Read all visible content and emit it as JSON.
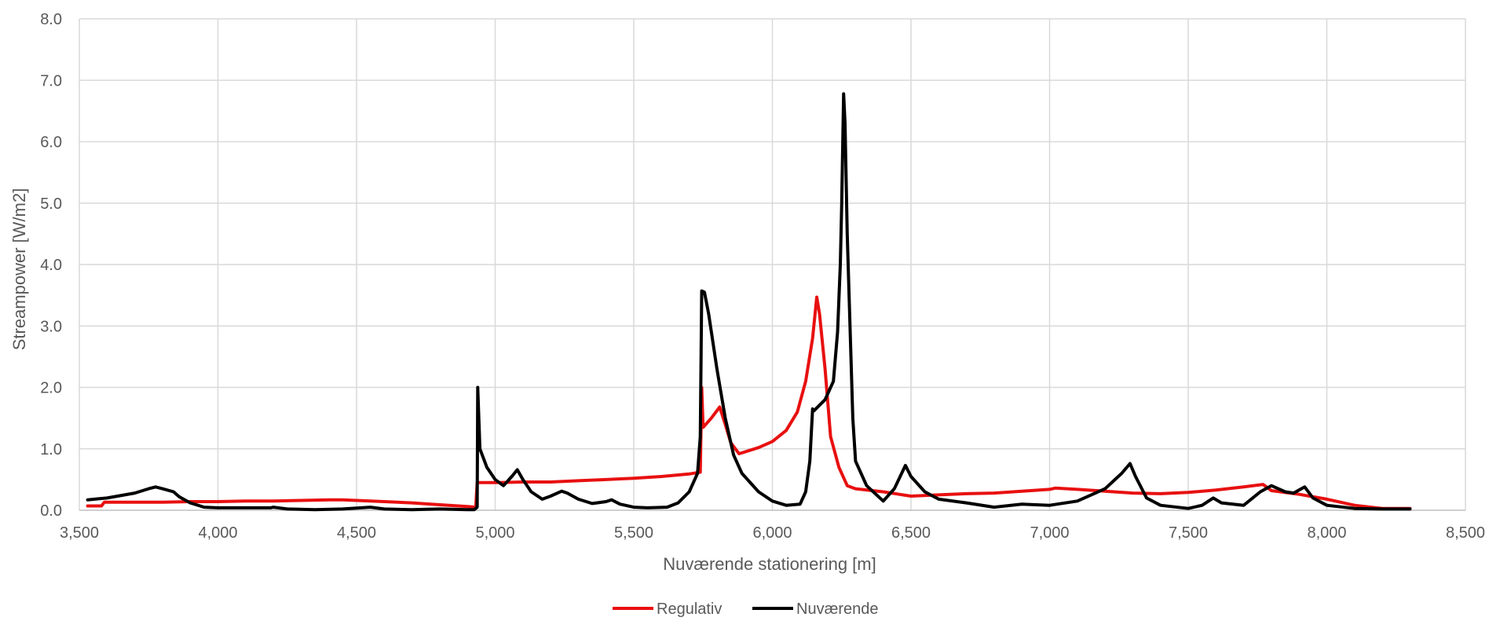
{
  "chart_data": {
    "type": "line",
    "xlabel": "Nuværende stationering [m]",
    "ylabel": "Streampower [W/m2]",
    "xlim": [
      3500,
      8500
    ],
    "ylim": [
      0,
      8
    ],
    "xticks": [
      3500,
      4000,
      4500,
      5000,
      5500,
      6000,
      6500,
      7000,
      7500,
      8000,
      8500
    ],
    "xtick_labels": [
      "3,500",
      "4,000",
      "4,500",
      "5,000",
      "5,500",
      "6,000",
      "6,500",
      "7,000",
      "7,500",
      "8,000",
      "8,500"
    ],
    "yticks": [
      0,
      1,
      2,
      3,
      4,
      5,
      6,
      7,
      8
    ],
    "ytick_labels": [
      "0.0",
      "1.0",
      "2.0",
      "3.0",
      "4.0",
      "5.0",
      "6.0",
      "7.0",
      "8.0"
    ],
    "grid": true,
    "legend": "bottom-center",
    "series": [
      {
        "name": "Regulativ",
        "color": "#e81010",
        "points": [
          [
            3530,
            0.07
          ],
          [
            3580,
            0.07
          ],
          [
            3590,
            0.13
          ],
          [
            3700,
            0.13
          ],
          [
            3800,
            0.13
          ],
          [
            3900,
            0.14
          ],
          [
            4000,
            0.14
          ],
          [
            4100,
            0.15
          ],
          [
            4200,
            0.15
          ],
          [
            4300,
            0.16
          ],
          [
            4400,
            0.17
          ],
          [
            4450,
            0.17
          ],
          [
            4500,
            0.16
          ],
          [
            4600,
            0.14
          ],
          [
            4700,
            0.12
          ],
          [
            4800,
            0.09
          ],
          [
            4900,
            0.06
          ],
          [
            4930,
            0.05
          ],
          [
            4935,
            0.45
          ],
          [
            5000,
            0.45
          ],
          [
            5100,
            0.46
          ],
          [
            5200,
            0.46
          ],
          [
            5300,
            0.48
          ],
          [
            5400,
            0.5
          ],
          [
            5500,
            0.52
          ],
          [
            5600,
            0.55
          ],
          [
            5700,
            0.59
          ],
          [
            5740,
            0.62
          ],
          [
            5745,
            2.0
          ],
          [
            5750,
            1.35
          ],
          [
            5780,
            1.5
          ],
          [
            5810,
            1.68
          ],
          [
            5830,
            1.4
          ],
          [
            5850,
            1.1
          ],
          [
            5880,
            0.92
          ],
          [
            5950,
            1.02
          ],
          [
            6000,
            1.12
          ],
          [
            6050,
            1.3
          ],
          [
            6090,
            1.6
          ],
          [
            6120,
            2.1
          ],
          [
            6145,
            2.8
          ],
          [
            6160,
            3.47
          ],
          [
            6170,
            3.2
          ],
          [
            6190,
            2.3
          ],
          [
            6210,
            1.2
          ],
          [
            6240,
            0.7
          ],
          [
            6270,
            0.4
          ],
          [
            6300,
            0.35
          ],
          [
            6400,
            0.3
          ],
          [
            6500,
            0.23
          ],
          [
            6600,
            0.25
          ],
          [
            6700,
            0.27
          ],
          [
            6800,
            0.28
          ],
          [
            6900,
            0.31
          ],
          [
            7000,
            0.34
          ],
          [
            7020,
            0.36
          ],
          [
            7100,
            0.34
          ],
          [
            7200,
            0.31
          ],
          [
            7300,
            0.28
          ],
          [
            7400,
            0.27
          ],
          [
            7500,
            0.29
          ],
          [
            7600,
            0.33
          ],
          [
            7700,
            0.38
          ],
          [
            7770,
            0.42
          ],
          [
            7800,
            0.32
          ],
          [
            7900,
            0.26
          ],
          [
            8000,
            0.18
          ],
          [
            8100,
            0.08
          ],
          [
            8200,
            0.03
          ],
          [
            8300,
            0.03
          ]
        ]
      },
      {
        "name": "Nuværende",
        "color": "#000000",
        "points": [
          [
            3530,
            0.17
          ],
          [
            3600,
            0.2
          ],
          [
            3700,
            0.28
          ],
          [
            3750,
            0.35
          ],
          [
            3775,
            0.38
          ],
          [
            3800,
            0.35
          ],
          [
            3840,
            0.3
          ],
          [
            3860,
            0.22
          ],
          [
            3900,
            0.12
          ],
          [
            3950,
            0.05
          ],
          [
            4000,
            0.04
          ],
          [
            4100,
            0.04
          ],
          [
            4190,
            0.04
          ],
          [
            4200,
            0.05
          ],
          [
            4250,
            0.02
          ],
          [
            4350,
            0.01
          ],
          [
            4450,
            0.02
          ],
          [
            4550,
            0.05
          ],
          [
            4600,
            0.02
          ],
          [
            4700,
            0.01
          ],
          [
            4800,
            0.02
          ],
          [
            4900,
            0.01
          ],
          [
            4925,
            0.01
          ],
          [
            4935,
            0.05
          ],
          [
            4937,
            2.0
          ],
          [
            4945,
            1.0
          ],
          [
            4970,
            0.7
          ],
          [
            5000,
            0.5
          ],
          [
            5030,
            0.4
          ],
          [
            5060,
            0.55
          ],
          [
            5080,
            0.66
          ],
          [
            5100,
            0.5
          ],
          [
            5130,
            0.3
          ],
          [
            5170,
            0.18
          ],
          [
            5200,
            0.23
          ],
          [
            5240,
            0.31
          ],
          [
            5260,
            0.28
          ],
          [
            5300,
            0.18
          ],
          [
            5350,
            0.11
          ],
          [
            5400,
            0.14
          ],
          [
            5420,
            0.17
          ],
          [
            5450,
            0.1
          ],
          [
            5500,
            0.05
          ],
          [
            5550,
            0.04
          ],
          [
            5620,
            0.05
          ],
          [
            5660,
            0.12
          ],
          [
            5700,
            0.3
          ],
          [
            5730,
            0.6
          ],
          [
            5740,
            1.2
          ],
          [
            5745,
            3.57
          ],
          [
            5755,
            3.55
          ],
          [
            5770,
            3.2
          ],
          [
            5800,
            2.3
          ],
          [
            5830,
            1.5
          ],
          [
            5860,
            0.9
          ],
          [
            5890,
            0.6
          ],
          [
            5950,
            0.3
          ],
          [
            6000,
            0.15
          ],
          [
            6050,
            0.08
          ],
          [
            6100,
            0.1
          ],
          [
            6120,
            0.3
          ],
          [
            6135,
            0.8
          ],
          [
            6145,
            1.65
          ],
          [
            6150,
            1.62
          ],
          [
            6190,
            1.8
          ],
          [
            6220,
            2.1
          ],
          [
            6235,
            2.9
          ],
          [
            6245,
            4.0
          ],
          [
            6250,
            5.0
          ],
          [
            6257,
            6.78
          ],
          [
            6262,
            6.3
          ],
          [
            6270,
            4.5
          ],
          [
            6290,
            1.5
          ],
          [
            6300,
            0.8
          ],
          [
            6340,
            0.4
          ],
          [
            6400,
            0.15
          ],
          [
            6440,
            0.35
          ],
          [
            6480,
            0.73
          ],
          [
            6500,
            0.55
          ],
          [
            6550,
            0.3
          ],
          [
            6600,
            0.18
          ],
          [
            6700,
            0.12
          ],
          [
            6800,
            0.05
          ],
          [
            6900,
            0.1
          ],
          [
            7000,
            0.08
          ],
          [
            7100,
            0.15
          ],
          [
            7200,
            0.35
          ],
          [
            7260,
            0.6
          ],
          [
            7290,
            0.76
          ],
          [
            7310,
            0.55
          ],
          [
            7350,
            0.2
          ],
          [
            7400,
            0.08
          ],
          [
            7500,
            0.03
          ],
          [
            7550,
            0.08
          ],
          [
            7590,
            0.2
          ],
          [
            7620,
            0.12
          ],
          [
            7700,
            0.08
          ],
          [
            7760,
            0.3
          ],
          [
            7800,
            0.4
          ],
          [
            7850,
            0.3
          ],
          [
            7880,
            0.28
          ],
          [
            7920,
            0.38
          ],
          [
            7950,
            0.2
          ],
          [
            8000,
            0.08
          ],
          [
            8100,
            0.03
          ],
          [
            8200,
            0.02
          ],
          [
            8300,
            0.02
          ]
        ]
      }
    ]
  }
}
